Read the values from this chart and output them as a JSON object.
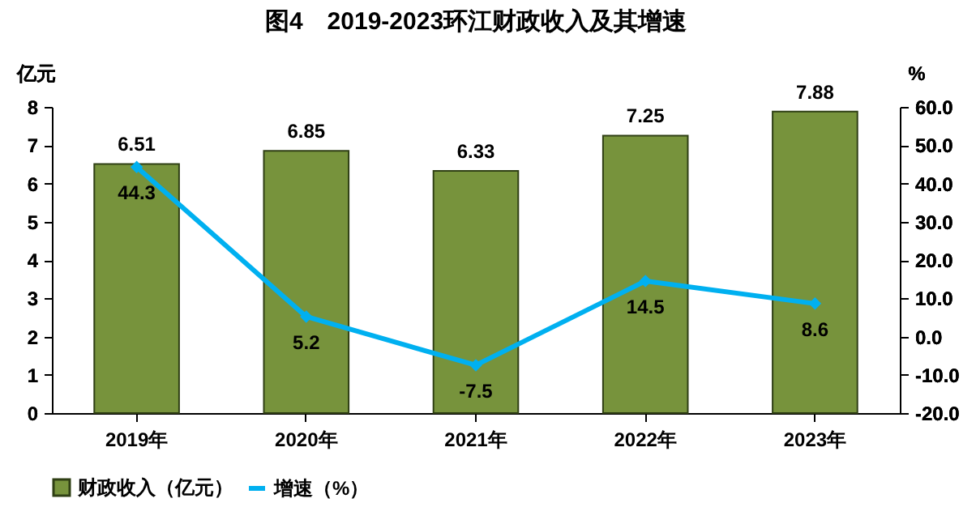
{
  "chart_data": {
    "type": "bar",
    "title": "图4　2019-2023环江财政收入及其增速",
    "ylabel": "亿元",
    "y2label": "%",
    "categories": [
      "2019年",
      "2020年",
      "2021年",
      "2022年",
      "2023年"
    ],
    "series": [
      {
        "name": "财政收入（亿元）",
        "color": "#77933c",
        "values": [
          6.51,
          6.85,
          6.33,
          7.25,
          7.88
        ]
      },
      {
        "name": "增速（%）",
        "type": "line",
        "axis": "y2",
        "color": "#00b0f0",
        "values": [
          44.3,
          5.2,
          -7.5,
          14.5,
          8.6
        ]
      }
    ],
    "ylim": [
      0,
      8
    ],
    "yticks": [
      0,
      1,
      2,
      3,
      4,
      5,
      6,
      7,
      8
    ],
    "y2lim": [
      -20,
      60
    ],
    "y2ticks": [
      {
        "value": -20,
        "label": "-20.0"
      },
      {
        "value": -10,
        "label": "-10.0"
      },
      {
        "value": 0,
        "label": "0.0"
      },
      {
        "value": 10,
        "label": "10.0"
      },
      {
        "value": 20,
        "label": "20.0"
      },
      {
        "value": 30,
        "label": "30.0"
      },
      {
        "value": 40,
        "label": "40.0"
      },
      {
        "value": 50,
        "label": "50.0"
      },
      {
        "value": 60,
        "label": "60.0"
      }
    ],
    "data_labels": true,
    "marker": "diamond",
    "legend": "bottom"
  }
}
